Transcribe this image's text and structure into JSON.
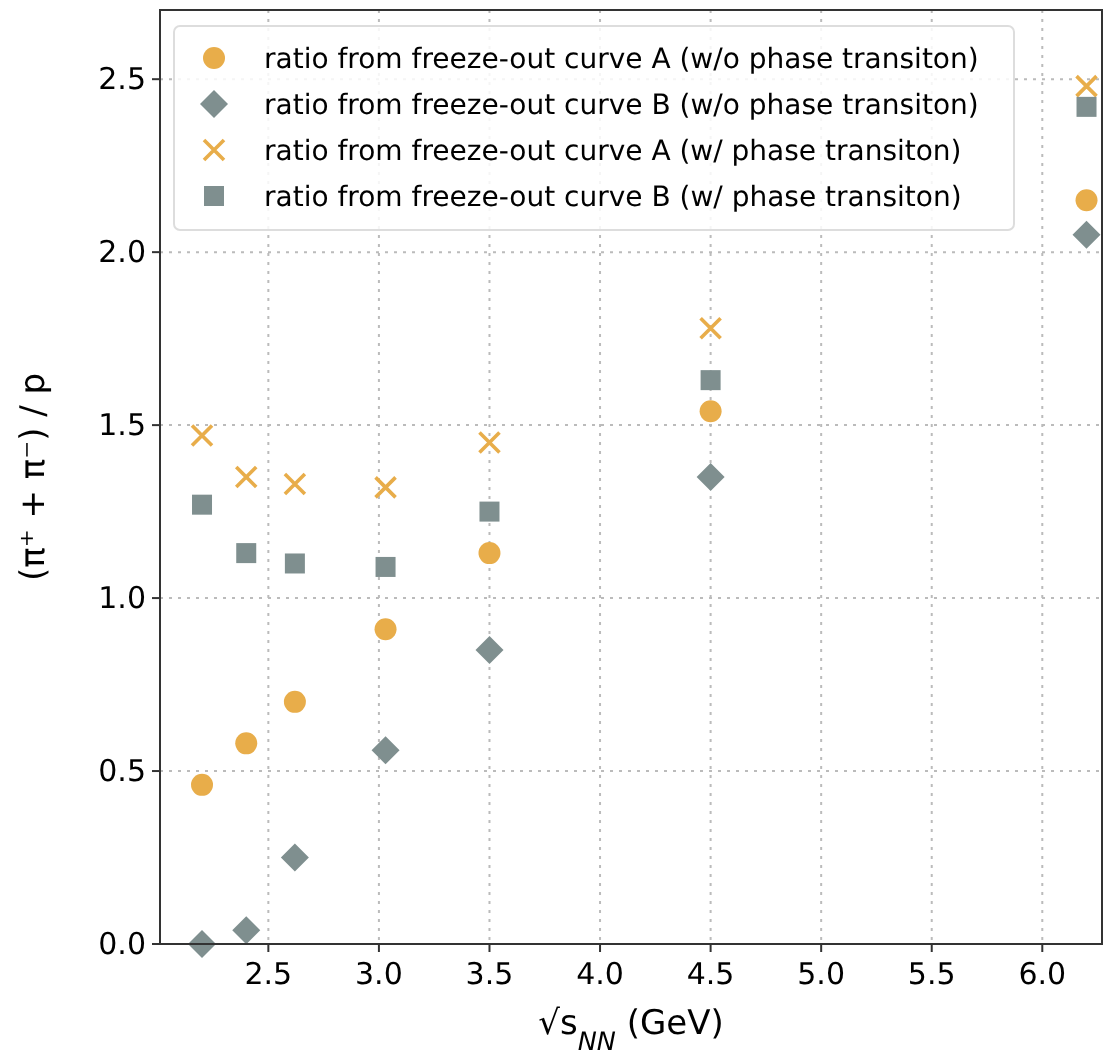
{
  "chart_data": {
    "type": "scatter",
    "xlabel": "√s$_{NN}$ (GeV)",
    "ylabel": "(π⁺ + π⁻) / p",
    "x": [
      2.2,
      2.4,
      2.62,
      3.03,
      3.5,
      4.5,
      6.2
    ],
    "series": [
      {
        "name": "ratio from freeze-out curve A (w/o phase transiton)",
        "color": "#e8ad4a",
        "marker": "circle",
        "values": [
          0.46,
          0.58,
          0.7,
          0.91,
          1.13,
          1.54,
          2.15
        ]
      },
      {
        "name": "ratio from freeze-out curve B (w/o phase transiton)",
        "color": "#7f8f8f",
        "marker": "diamond",
        "values": [
          0.0,
          0.04,
          0.25,
          0.56,
          0.85,
          1.35,
          2.05
        ]
      },
      {
        "name": "ratio from freeze-out curve A (w/ phase transiton)",
        "color": "#e8ad4a",
        "marker": "cross",
        "values": [
          1.47,
          1.35,
          1.33,
          1.32,
          1.45,
          1.78,
          2.48
        ]
      },
      {
        "name": "ratio from freeze-out curve B (w/ phase transiton)",
        "color": "#7f8f8f",
        "marker": "square",
        "values": [
          1.27,
          1.13,
          1.1,
          1.09,
          1.25,
          1.63,
          2.42
        ]
      }
    ],
    "xlim": [
      2.01,
      6.27
    ],
    "xticks": [
      2.5,
      {
        "value": 3,
        "label": "3.0"
      },
      3.5,
      {
        "value": 4,
        "label": "4.0"
      },
      4.5,
      {
        "value": 5,
        "label": "5.0"
      },
      5.5,
      {
        "value": 6,
        "label": "6.0"
      }
    ],
    "ylim": [
      0,
      2.7
    ],
    "yticks": [
      {
        "value": 0,
        "label": "0.0"
      },
      0.5,
      {
        "value": 1,
        "label": "1.0"
      },
      1.5,
      {
        "value": 2,
        "label": "2.0"
      },
      2.5
    ],
    "grid": true,
    "legend": "top left"
  }
}
